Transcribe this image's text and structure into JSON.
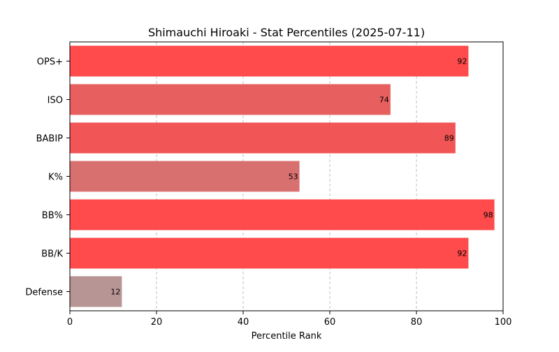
{
  "chart_data": {
    "type": "bar",
    "orientation": "horizontal",
    "title": "Shimauchi Hiroaki - Stat Percentiles (2025-07-11)",
    "xlabel": "Percentile Rank",
    "ylabel": "",
    "xlim": [
      0,
      100
    ],
    "xticks": [
      0,
      20,
      40,
      60,
      80,
      100
    ],
    "grid": "x-dashed",
    "categories": [
      "OPS+",
      "ISO",
      "BABIP",
      "K%",
      "BB%",
      "BB/K",
      "Defense"
    ],
    "values": [
      92,
      74,
      89,
      53,
      98,
      92,
      12
    ],
    "bar_colors": [
      "#ff4b4b",
      "#e85f5f",
      "#f25555",
      "#d97070",
      "#ff4b4b",
      "#ff4b4b",
      "#b89595"
    ],
    "data_labels": [
      "92",
      "74",
      "89",
      "53",
      "98",
      "92",
      "12"
    ]
  }
}
